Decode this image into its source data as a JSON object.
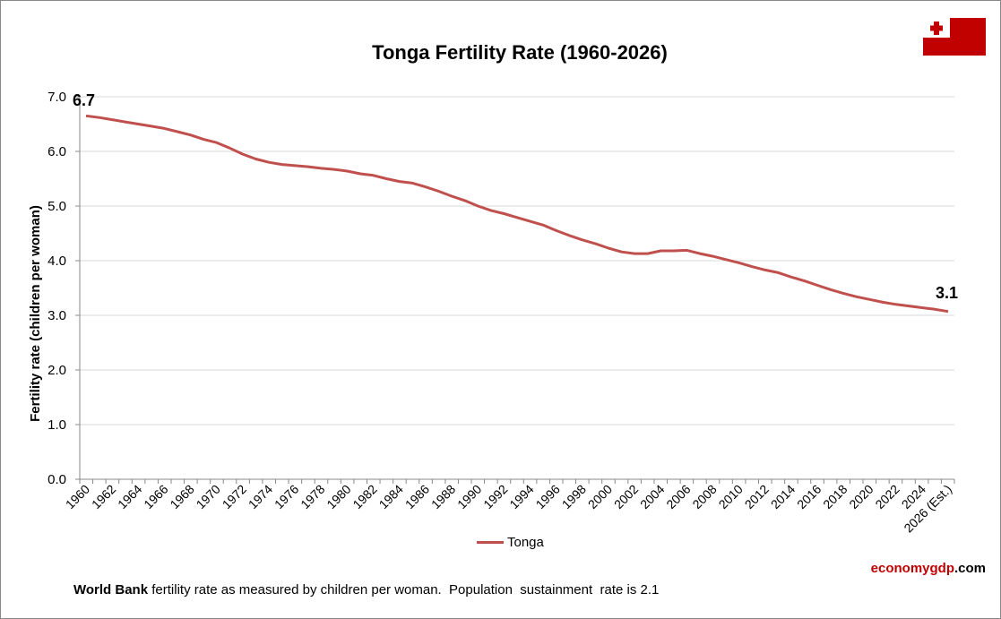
{
  "chart_data": {
    "type": "line",
    "title": "Tonga Fertility Rate (1960-2026)",
    "ylabel": "Fertility rate (children per woman)",
    "xlabel": "",
    "ylim": [
      0,
      7
    ],
    "yticks": [
      "0.0",
      "1.0",
      "2.0",
      "3.0",
      "4.0",
      "5.0",
      "6.0",
      "7.0"
    ],
    "grid": true,
    "legend_placement": "bottom",
    "x": [
      1960,
      1961,
      1962,
      1963,
      1964,
      1965,
      1966,
      1967,
      1968,
      1969,
      1970,
      1971,
      1972,
      1973,
      1974,
      1975,
      1976,
      1977,
      1978,
      1979,
      1980,
      1981,
      1982,
      1983,
      1984,
      1985,
      1986,
      1987,
      1988,
      1989,
      1990,
      1991,
      1992,
      1993,
      1994,
      1995,
      1996,
      1997,
      1998,
      1999,
      2000,
      2001,
      2002,
      2003,
      2004,
      2005,
      2006,
      2007,
      2008,
      2009,
      2010,
      2011,
      2012,
      2013,
      2014,
      2015,
      2016,
      2017,
      2018,
      2019,
      2020,
      2021,
      2022,
      2023,
      2024,
      2025,
      2026
    ],
    "xtick_labels": [
      "1960",
      "1962",
      "1964",
      "1966",
      "1968",
      "1970",
      "1972",
      "1974",
      "1976",
      "1978",
      "1980",
      "1982",
      "1984",
      "1986",
      "1988",
      "1990",
      "1992",
      "1994",
      "1996",
      "1998",
      "2000",
      "2002",
      "2004",
      "2006",
      "2008",
      "2010",
      "2012",
      "2014",
      "2016",
      "2018",
      "2020",
      "2022",
      "2024",
      "2026 (Est.)"
    ],
    "series": [
      {
        "name": "Tonga",
        "color": "#c0504d",
        "values": [
          6.65,
          6.62,
          6.58,
          6.54,
          6.5,
          6.46,
          6.42,
          6.36,
          6.3,
          6.22,
          6.16,
          6.06,
          5.95,
          5.86,
          5.8,
          5.76,
          5.74,
          5.72,
          5.69,
          5.67,
          5.64,
          5.59,
          5.56,
          5.5,
          5.45,
          5.42,
          5.35,
          5.27,
          5.18,
          5.1,
          5.0,
          4.92,
          4.86,
          4.79,
          4.72,
          4.65,
          4.55,
          4.46,
          4.38,
          4.31,
          4.23,
          4.16,
          4.13,
          4.13,
          4.18,
          4.18,
          4.19,
          4.13,
          4.08,
          4.02,
          3.96,
          3.89,
          3.83,
          3.78,
          3.7,
          3.63,
          3.55,
          3.47,
          3.4,
          3.34,
          3.29,
          3.24,
          3.2,
          3.17,
          3.14,
          3.11,
          3.07
        ]
      }
    ],
    "annotations": {
      "first": "6.7",
      "last": "3.1"
    }
  },
  "footer": {
    "source_bold": "World Bank",
    "source_text": " fertility rate as measured by children per woman.  Population  sustainment  rate is 2.1"
  },
  "brand": {
    "part1": "economygdp",
    "part2": ".com",
    "color1": "#c00000"
  },
  "flag": {
    "icon": "tonga-flag-icon",
    "red": "#c10000"
  }
}
